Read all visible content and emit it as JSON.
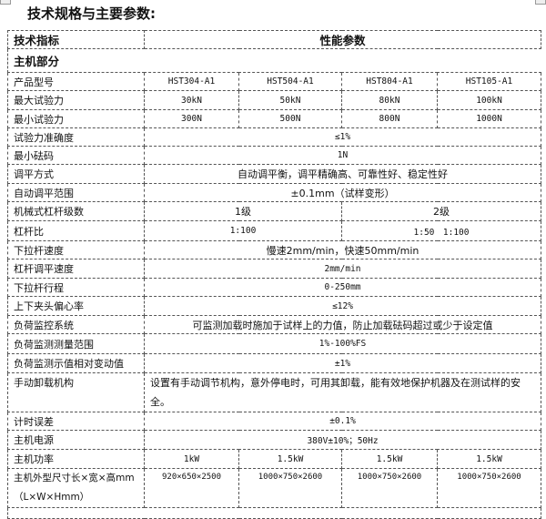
{
  "title": "技术规格与主要参数:",
  "header": {
    "col1": "技术指标",
    "col2": "性能参数"
  },
  "section": "主机部分",
  "models": {
    "label": "产品型号",
    "values": [
      "HST304-A1",
      "HST504-A1",
      "HST804-A1",
      "HST105-A1"
    ]
  },
  "max_force": {
    "label": "最大试验力",
    "values": [
      "30kN",
      "50kN",
      "80kN",
      "100kN"
    ]
  },
  "min_force": {
    "label": "最小试验力",
    "values": [
      "300N",
      "500N",
      "800N",
      "1000N"
    ]
  },
  "accuracy": {
    "label": "试验力准确度",
    "value": "≤1%"
  },
  "min_weight": {
    "label": "最小砝码",
    "value": "1N"
  },
  "leveling_mode": {
    "label": "调平方式",
    "value": "自动调平衡，调平精确高、可靠性好、稳定性好"
  },
  "leveling_range": {
    "label": "自动调平范围",
    "value": "±0.1mm（试样变形）"
  },
  "lever_stages": {
    "label": "机械式杠杆级数",
    "values": [
      "1级",
      "2级"
    ]
  },
  "lever_ratio": {
    "label": "杠杆比",
    "values": [
      "1:100",
      "1:50　1:100"
    ]
  },
  "pull_speed": {
    "label": "下拉杆速度",
    "value": "慢速2mm/min，快速50mm/min"
  },
  "lever_speed": {
    "label": "杠杆调平速度",
    "value": "2mm/min"
  },
  "pull_stroke": {
    "label": "下拉杆行程",
    "value": "0-250mm"
  },
  "eccentricity": {
    "label": "上下夹头偏心率",
    "value": "≤12%"
  },
  "load_monitor": {
    "label": "负荷监控系统",
    "value": "可监测加载时施加于试样上的力值，防止加载砝码超过或少于设定值"
  },
  "monitor_range": {
    "label": "负荷监测测量范围",
    "value": "1%-100%FS"
  },
  "monitor_variation": {
    "label": "负荷监测示值相对变动值",
    "value": "±1%"
  },
  "manual_unload": {
    "label": "手动卸载机构",
    "value": "设置有手动调节机构，意外停电时，可用其卸载，能有效地保护机器及在测试样的安全。"
  },
  "timing_error": {
    "label": "计时误差",
    "value": "±0.1%"
  },
  "power_supply": {
    "label": "主机电源",
    "value": "380V±10%；50Hz"
  },
  "power": {
    "label": "主机功率",
    "values": [
      "1kW",
      "1.5kW",
      "1.5kW",
      "1.5kW"
    ]
  },
  "dimensions": {
    "label": "主机外型尺寸长×宽×高mm（L×W×Hmm）",
    "values": [
      "920×650×2500",
      "1000×750×2600",
      "1000×750×2600",
      "1000×750×2600"
    ]
  }
}
